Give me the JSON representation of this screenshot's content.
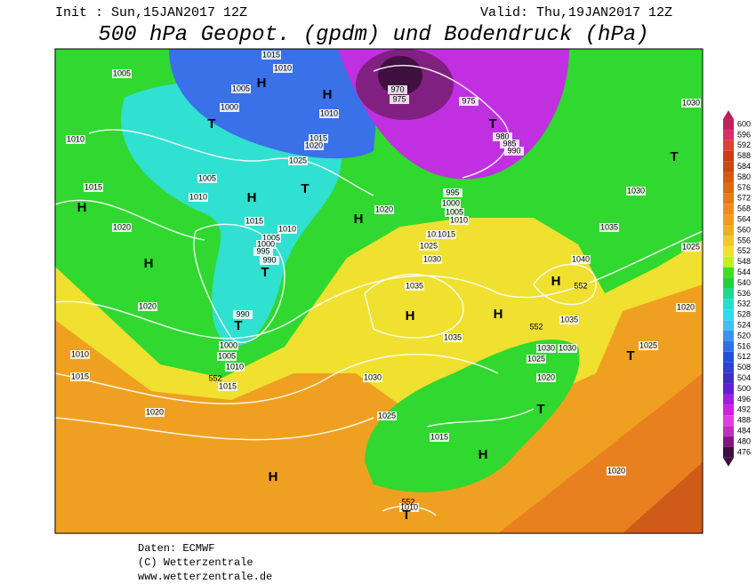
{
  "header": {
    "init": "Init : Sun,15JAN2017 12Z",
    "valid": "Valid: Thu,19JAN2017 12Z",
    "title": "500 hPa Geopot. (gpdm) und Bodendruck (hPa)"
  },
  "colorbar": {
    "labels": [
      600,
      596,
      592,
      588,
      584,
      580,
      576,
      572,
      568,
      564,
      560,
      556,
      552,
      548,
      544,
      540,
      536,
      532,
      528,
      524,
      520,
      516,
      512,
      508,
      504,
      500,
      496,
      492,
      488,
      484,
      480,
      476
    ],
    "colors": [
      "#c0205a",
      "#d8306a",
      "#e04030",
      "#d03a10",
      "#c84a10",
      "#d85a10",
      "#e06a10",
      "#e87a18",
      "#f08a20",
      "#f09a20",
      "#f0ac20",
      "#f0c828",
      "#f0e030",
      "#c0f020",
      "#40e020",
      "#20d040",
      "#20d890",
      "#20e0d0",
      "#30d8f0",
      "#40c0f0",
      "#4090f0",
      "#3070e8",
      "#2050e0",
      "#3040d0",
      "#4030c0",
      "#6020d0",
      "#a020e0",
      "#d020e0",
      "#e040e0",
      "#c030c0",
      "#801880",
      "#401040"
    ]
  },
  "map": {
    "pressure_labels": [
      1005,
      1010,
      1015,
      1005,
      1000,
      1010,
      1015,
      1005,
      1010,
      1010,
      1015,
      1020,
      1025,
      970,
      975,
      975,
      980,
      985,
      990,
      995,
      1000,
      1005,
      1010,
      1020,
      1015,
      1010,
      1005,
      1000,
      995,
      990,
      1020,
      1020,
      1010,
      1015,
      990,
      1000,
      1005,
      1010,
      1015,
      1020,
      1020,
      1015,
      1025,
      1030,
      1035,
      1035,
      1030,
      1040,
      1035,
      1030,
      1030,
      1025,
      1020,
      1035,
      1030,
      1030,
      1025,
      1020,
      1025,
      1025,
      1015,
      1020,
      1010
    ],
    "geopot_labels": [
      552,
      552,
      552,
      552
    ],
    "centers": [
      "H",
      "H",
      "T",
      "T",
      "T",
      "T",
      "H",
      "H",
      "H",
      "H",
      "T",
      "T",
      "H",
      "H",
      "H",
      "T",
      "T",
      "H",
      "H",
      "T"
    ]
  },
  "footer": [
    "Daten: ECMWF",
    "(C) Wetterzentrale",
    "www.wetterzentrale.de"
  ]
}
